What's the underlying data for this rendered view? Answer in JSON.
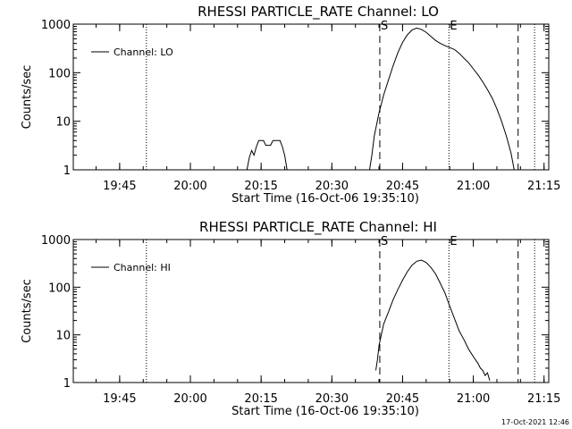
{
  "chart_data": [
    {
      "type": "line",
      "title": "RHESSI PARTICLE_RATE Channel: LO",
      "xlabel": "Start Time (16-Oct-06 19:35:10)",
      "ylabel": "Counts/sec",
      "x_ticks": [
        "19:45",
        "20:00",
        "20:15",
        "20:30",
        "20:45",
        "21:00",
        "21:15"
      ],
      "y_ticks": [
        "1",
        "10",
        "100",
        "1000"
      ],
      "yscale": "log",
      "xlim": [
        "19:35:10",
        "21:16"
      ],
      "ylim": [
        1,
        1000
      ],
      "legend": {
        "label": "Channel: LO",
        "placement": "top-left"
      },
      "markers": {
        "dotted": [
          "19:50:40",
          "20:54:50",
          "21:13:00"
        ],
        "dashed": [
          "20:40:10",
          "21:09:30"
        ],
        "labels": [
          {
            "text": "S",
            "at": "20:40:10"
          },
          {
            "text": "E",
            "at": "20:54:50"
          }
        ]
      },
      "series": [
        {
          "name": "Channel: LO",
          "segments": [
            [
              [
                "20:12:00",
                1
              ],
              [
                "20:12:30",
                1.8
              ],
              [
                "20:13",
                2.5
              ],
              [
                "20:13:30",
                2
              ],
              [
                "20:14",
                3
              ],
              [
                "20:14:30",
                4
              ],
              [
                "20:15:30",
                4
              ],
              [
                "20:16",
                3.2
              ],
              [
                "20:17",
                3.2
              ],
              [
                "20:17:30",
                4
              ],
              [
                "20:19",
                4
              ],
              [
                "20:19:30",
                3
              ],
              [
                "20:20",
                2
              ],
              [
                "20:20:30",
                1
              ]
            ],
            [
              [
                "20:38:00",
                1
              ],
              [
                "20:38:30",
                2
              ],
              [
                "20:39",
                5
              ],
              [
                "20:40",
                15
              ],
              [
                "20:41",
                35
              ],
              [
                "20:42",
                70
              ],
              [
                "20:43",
                140
              ],
              [
                "20:44",
                260
              ],
              [
                "20:45",
                420
              ],
              [
                "20:46",
                600
              ],
              [
                "20:47",
                760
              ],
              [
                "20:48",
                830
              ],
              [
                "20:49",
                780
              ],
              [
                "20:50",
                680
              ],
              [
                "20:51",
                560
              ],
              [
                "20:52",
                460
              ],
              [
                "20:53",
                400
              ],
              [
                "20:54",
                360
              ],
              [
                "20:55",
                330
              ],
              [
                "20:56",
                300
              ],
              [
                "20:57",
                250
              ],
              [
                "20:58",
                200
              ],
              [
                "20:59",
                160
              ],
              [
                "21:00",
                120
              ],
              [
                "21:01",
                90
              ],
              [
                "21:02",
                65
              ],
              [
                "21:03",
                45
              ],
              [
                "21:04",
                30
              ],
              [
                "21:05",
                18
              ],
              [
                "21:06",
                10
              ],
              [
                "21:07",
                5
              ],
              [
                "21:08",
                2.2
              ],
              [
                "21:08:40",
                1
              ]
            ]
          ]
        }
      ]
    },
    {
      "type": "line",
      "title": "RHESSI PARTICLE_RATE Channel: HI",
      "xlabel": "Start Time (16-Oct-06 19:35:10)",
      "ylabel": "Counts/sec",
      "x_ticks": [
        "19:45",
        "20:00",
        "20:15",
        "20:30",
        "20:45",
        "21:00",
        "21:15"
      ],
      "y_ticks": [
        "1",
        "10",
        "100",
        "1000"
      ],
      "yscale": "log",
      "xlim": [
        "19:35:10",
        "21:16"
      ],
      "ylim": [
        1,
        1000
      ],
      "legend": {
        "label": "Channel: HI",
        "placement": "top-left"
      },
      "markers": {
        "dotted": [
          "19:50:40",
          "20:54:50",
          "21:13:00"
        ],
        "dashed": [
          "20:40:10",
          "21:09:30"
        ],
        "labels": [
          {
            "text": "S",
            "at": "20:40:10"
          },
          {
            "text": "E",
            "at": "20:54:50"
          }
        ]
      },
      "series": [
        {
          "name": "Channel: HI",
          "segments": [
            [
              [
                "20:39:20",
                1.8
              ],
              [
                "20:39:40",
                3
              ],
              [
                "20:40",
                6
              ],
              [
                "20:41",
                17
              ],
              [
                "20:42",
                30
              ],
              [
                "20:43",
                55
              ],
              [
                "20:44",
                90
              ],
              [
                "20:45",
                140
              ],
              [
                "20:46",
                210
              ],
              [
                "20:47",
                290
              ],
              [
                "20:48",
                350
              ],
              [
                "20:49",
                370
              ],
              [
                "20:50",
                330
              ],
              [
                "20:51",
                260
              ],
              [
                "20:52",
                190
              ],
              [
                "20:53",
                120
              ],
              [
                "20:54",
                75
              ],
              [
                "20:55",
                40
              ],
              [
                "20:56",
                22
              ],
              [
                "20:57",
                12
              ],
              [
                "20:58",
                8
              ],
              [
                "20:59",
                5
              ],
              [
                "21:00",
                3.5
              ],
              [
                "21:01",
                2.5
              ],
              [
                "21:01:30",
                2
              ],
              [
                "21:02",
                1.8
              ],
              [
                "21:02:30",
                1.4
              ],
              [
                "21:03",
                1.6
              ],
              [
                "21:03:30",
                1.1
              ]
            ]
          ]
        }
      ]
    }
  ],
  "footer": {
    "timestamp": "17-Oct-2021 12:46"
  }
}
